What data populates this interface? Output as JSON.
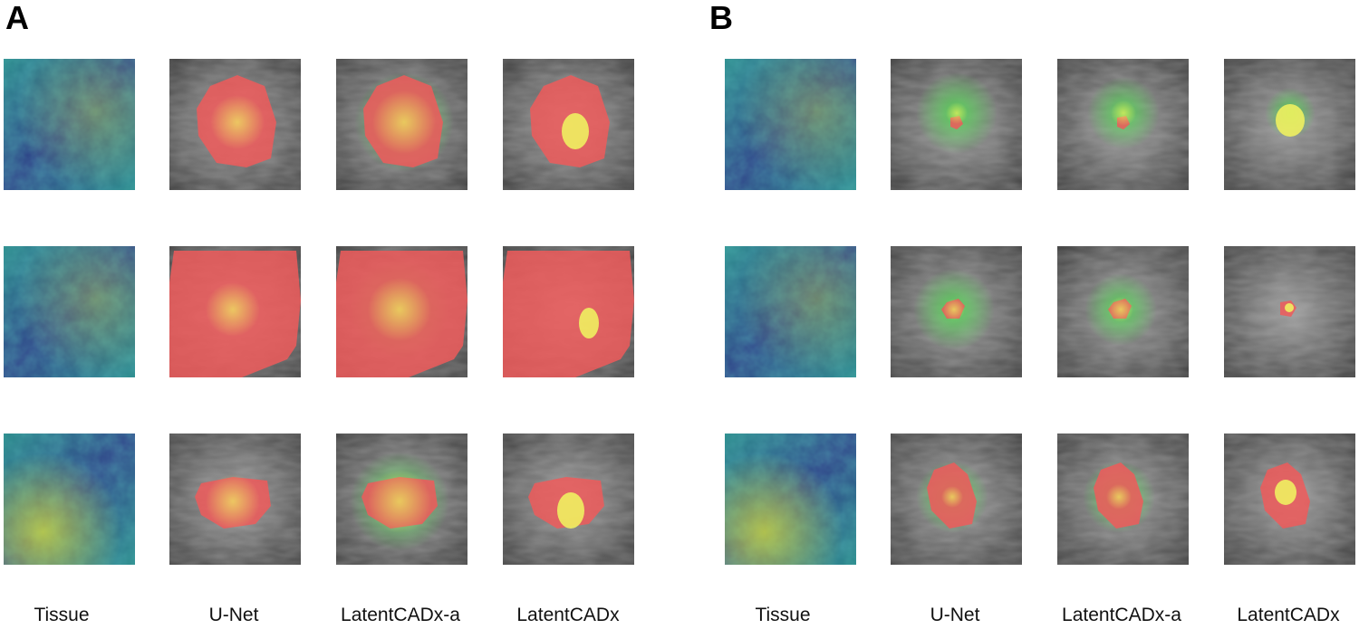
{
  "panels": [
    {
      "letter": "A",
      "columns": [
        "Tissue",
        "U-Net",
        "LatentCADx-a",
        "LatentCADx"
      ]
    },
    {
      "letter": "B",
      "columns": [
        "Tissue",
        "U-Net",
        "LatentCADx-a",
        "LatentCADx"
      ]
    }
  ],
  "colors": {
    "tissue_dark": "#2e3f87",
    "tissue_mid": "#2a8a8a",
    "tissue_bright": "#d8e43a",
    "mammo_gray": "#6b6b6b",
    "mask_red": "#ef5b5b",
    "attention_green": "#4fd24f",
    "lesion_yellow": "#f0f060"
  }
}
